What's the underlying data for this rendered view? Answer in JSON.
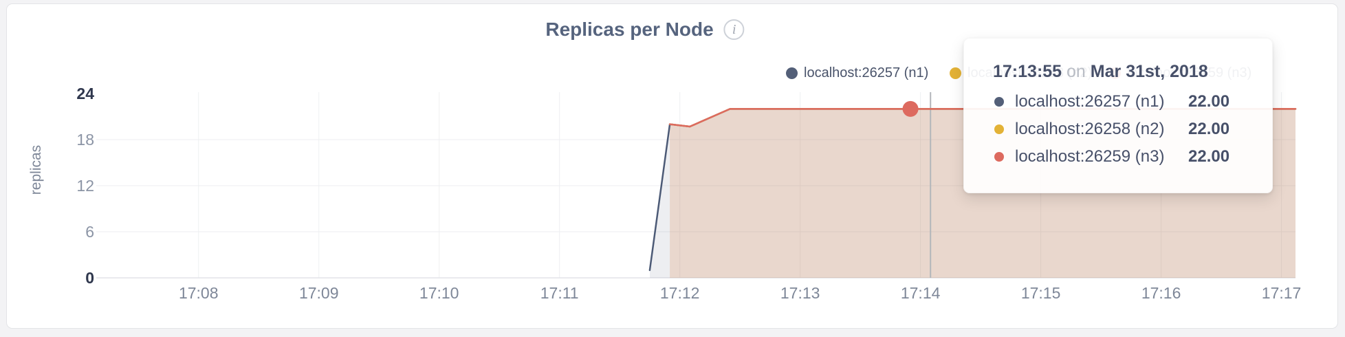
{
  "header": {
    "title": "Replicas per Node",
    "info_icon": "i"
  },
  "axes": {
    "y_label": "replicas",
    "y_tick_labels": [
      "0",
      "6",
      "12",
      "18",
      "24"
    ],
    "x_tick_labels": [
      "17:08",
      "17:09",
      "17:10",
      "17:11",
      "17:12",
      "17:13",
      "17:14",
      "17:15",
      "17:16",
      "17:17"
    ]
  },
  "legend": {
    "items": [
      {
        "label": "localhost:26257 (n1)",
        "color": "#535f78"
      },
      {
        "label": "localhost:26258 (n2)",
        "color": "#e3b236"
      },
      {
        "label": "localhost:26259 (n3)",
        "color": "#dd6a5f"
      }
    ]
  },
  "tooltip": {
    "time": "17:13:55",
    "conj": "on",
    "date": "Mar 31st, 2018",
    "rows": [
      {
        "label": "localhost:26257 (n1)",
        "value": "22.00",
        "color": "#535f78"
      },
      {
        "label": "localhost:26258 (n2)",
        "value": "22.00",
        "color": "#e3b236"
      },
      {
        "label": "localhost:26259 (n3)",
        "value": "22.00",
        "color": "#dd6a5f"
      }
    ]
  },
  "colors": {
    "title": "#56647e",
    "axis_text": "#7e8798",
    "axis_text_emphasis": "#2f374d",
    "gridline": "#eef0f2",
    "crosshair": "#b3b6bb",
    "series_n1": "#4c5a76",
    "series_n2": "#e3b236",
    "series_n3": "#dd6a5f"
  },
  "chart_data": {
    "type": "area",
    "title": "Replicas per Node",
    "xlabel": "",
    "ylabel": "replicas",
    "ylim": [
      0,
      24
    ],
    "y_ticks": [
      0,
      6,
      12,
      18,
      24
    ],
    "y_gridlines": [
      6,
      12,
      18
    ],
    "x_ticks": [
      "17:08",
      "17:09",
      "17:10",
      "17:11",
      "17:12",
      "17:13",
      "17:14",
      "17:15",
      "17:16",
      "17:17"
    ],
    "xlim": [
      "17:07:09",
      "17:17:07"
    ],
    "grid": true,
    "legend_position": "top-right",
    "series": [
      {
        "name": "localhost:26257 (n1)",
        "color": "#4c5a76",
        "fill_opacity": 0.1,
        "points": [
          [
            "17:11:45",
            1
          ],
          [
            "17:11:55",
            20
          ],
          [
            "17:12:05",
            19.7
          ],
          [
            "17:12:25",
            22
          ],
          [
            "17:13:55",
            22
          ],
          [
            "17:17:07",
            22
          ]
        ]
      },
      {
        "name": "localhost:26258 (n2)",
        "color": "#e3b236",
        "fill_opacity": 0.1,
        "points": [
          [
            "17:11:55",
            20
          ],
          [
            "17:12:05",
            19.7
          ],
          [
            "17:12:25",
            22
          ],
          [
            "17:13:55",
            22
          ],
          [
            "17:17:07",
            22
          ]
        ]
      },
      {
        "name": "localhost:26259 (n3)",
        "color": "#dd6a5f",
        "fill_opacity": 0.13,
        "points": [
          [
            "17:11:55",
            20
          ],
          [
            "17:12:05",
            19.7
          ],
          [
            "17:12:25",
            22
          ],
          [
            "17:13:55",
            22
          ],
          [
            "17:17:07",
            22
          ]
        ]
      }
    ],
    "highlight_point": {
      "time": "17:13:55",
      "value": 22,
      "series": "localhost:26259 (n3)"
    },
    "crosshair_time": "17:14:05"
  }
}
